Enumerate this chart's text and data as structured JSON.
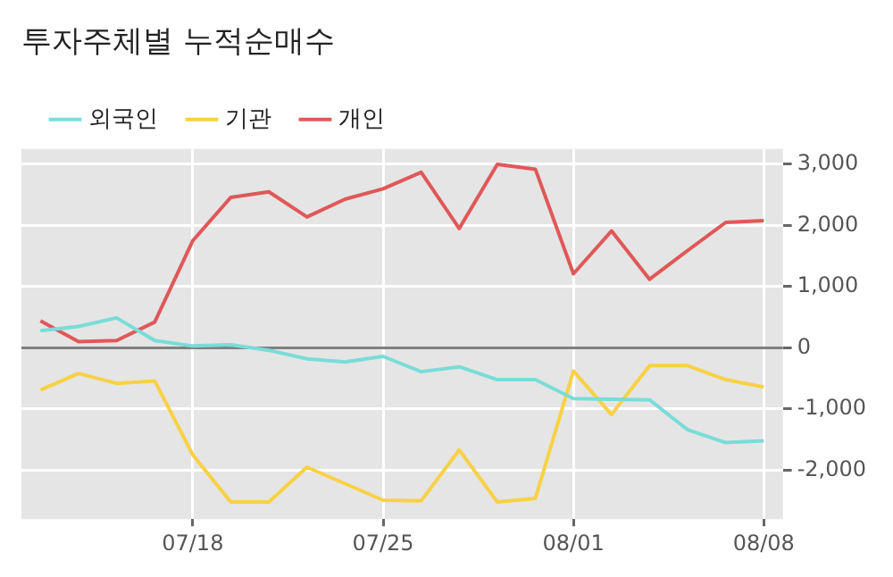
{
  "chart_data": {
    "type": "line",
    "title": "투자주체별 누적순매수",
    "categories": [
      null,
      null,
      null,
      null,
      "07/18",
      null,
      null,
      null,
      null,
      "07/25",
      null,
      null,
      null,
      null,
      "08/01",
      null,
      null,
      null,
      null,
      "08/08"
    ],
    "series": [
      {
        "name": "외국인",
        "color": "#7adcd8",
        "values": [
          280,
          350,
          490,
          120,
          30,
          50,
          -40,
          -180,
          -230,
          -140,
          -390,
          -310,
          -520,
          -520,
          -830,
          -840,
          -850,
          -1340,
          -1550,
          -1520
        ]
      },
      {
        "name": "기관",
        "color": "#f8d145",
        "values": [
          -690,
          -420,
          -580,
          -540,
          -1750,
          -2520,
          -2520,
          -1950,
          -2220,
          -2490,
          -2500,
          -1670,
          -2520,
          -2460,
          -380,
          -1090,
          -290,
          -290,
          -520,
          -640
        ]
      },
      {
        "name": "개인",
        "color": "#e05858",
        "values": [
          440,
          100,
          120,
          420,
          1750,
          2460,
          2550,
          2140,
          2430,
          2600,
          2870,
          1950,
          3000,
          2920,
          1210,
          1910,
          1120,
          1590,
          2050,
          2080
        ]
      }
    ],
    "ylim": [
      -2800,
      3250
    ],
    "yticks": [
      {
        "value": -2000,
        "label": "-2,000"
      },
      {
        "value": -1000,
        "label": "-1,000"
      },
      0,
      {
        "value": 1000,
        "label": "1,000"
      },
      {
        "value": 2000,
        "label": "2,000"
      },
      {
        "value": 3000,
        "label": "3,000"
      }
    ],
    "ref_lines": [
      {
        "axis": "y",
        "value": 0,
        "color": "#808080"
      }
    ],
    "grid": true,
    "legend": "top left",
    "marker": "none",
    "line_style": "solid"
  }
}
